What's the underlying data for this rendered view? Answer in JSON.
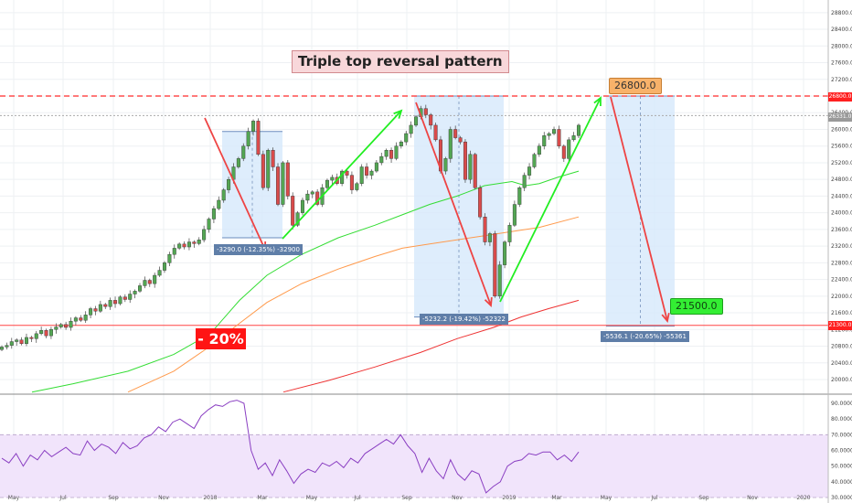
{
  "chart_data": [
    {
      "type": "candlestick",
      "title": "Triple top reversal pattern",
      "x_labels": [
        "May",
        "Jul",
        "Sep",
        "Nov",
        "2018",
        "Mar",
        "May",
        "Jul",
        "Sep",
        "Nov",
        "2019",
        "Mar",
        "May",
        "Jul",
        "Sep",
        "Nov",
        "2020"
      ],
      "y_ticks": [
        20000,
        20400,
        20800,
        21200,
        21600,
        22000,
        22400,
        22800,
        23200,
        23600,
        24000,
        24400,
        24800,
        25200,
        25600,
        26000,
        26400,
        26800,
        27200,
        27600,
        28000,
        28400,
        28800
      ],
      "y_tick_labels": [
        "20000.0",
        "20400.0",
        "20800.0",
        "21200.0",
        "21600.0",
        "22000.0",
        "22400.0",
        "22800.0",
        "23200.0",
        "23600.0",
        "24000.0",
        "24400.0",
        "24800.0",
        "25200.0",
        "25600.0",
        "26000.0",
        "26400.0",
        "26800.0",
        "27200.0",
        "27600.0",
        "28000.0",
        "28400.0",
        "28800.0"
      ],
      "ylim": [
        19700,
        29000
      ],
      "resistance_level": 26800,
      "resistance_label": "26800.0",
      "support_level": 21300,
      "support_label": "21300.0",
      "current_level": 26331,
      "current_label": "26331.0",
      "target_high_label": "26800.0",
      "target_low_label": "21500.0",
      "pct_label": "- 20%",
      "measurements": [
        {
          "label": "-3290.0 (-12.35%) -32900"
        },
        {
          "label": "-5232.2 (-19.42%) -52322"
        },
        {
          "label": "-5536.1 (-20.65%) -55361"
        }
      ],
      "closes": [
        20780,
        20820,
        20910,
        20950,
        20860,
        21010,
        20980,
        21100,
        21180,
        21050,
        21200,
        21260,
        21320,
        21250,
        21400,
        21480,
        21420,
        21550,
        21700,
        21640,
        21800,
        21750,
        21900,
        21820,
        21980,
        21920,
        22050,
        22120,
        22250,
        22380,
        22300,
        22500,
        22620,
        22800,
        23000,
        23150,
        23250,
        23180,
        23300,
        23260,
        23350,
        23600,
        23850,
        24100,
        24300,
        24550,
        24800,
        25100,
        25300,
        25600,
        25950,
        26200,
        25400,
        24600,
        25500,
        25100,
        24200,
        25200,
        24400,
        23700,
        24000,
        24300,
        24450,
        24500,
        24200,
        24600,
        24780,
        24850,
        24700,
        25000,
        24900,
        24550,
        24700,
        25100,
        24900,
        25000,
        25200,
        25350,
        25500,
        25300,
        25600,
        25700,
        25900,
        26100,
        26300,
        26500,
        26350,
        26100,
        25750,
        25000,
        25300,
        26000,
        25800,
        25700,
        24800,
        25400,
        24600,
        23900,
        23300,
        23500,
        22000,
        22750,
        23300,
        23700,
        24200,
        24600,
        24900,
        25100,
        25400,
        25600,
        25850,
        25900,
        26000,
        25600,
        25300,
        25750,
        25850,
        26100
      ],
      "moving_averages": [
        {
          "color": "#33dd33",
          "values": [
            19700,
            19900,
            20200,
            20600,
            21100,
            21900,
            22500,
            23000,
            23400,
            23700,
            23950,
            24200,
            24400,
            24650,
            24750,
            24650,
            24700,
            24850,
            25000
          ]
        },
        {
          "color": "#ff9a4c",
          "values": [
            19700,
            20200,
            20800,
            21350,
            21850,
            22300,
            22650,
            22950,
            23150,
            23250,
            23450,
            23650,
            23900
          ]
        },
        {
          "color": "#ee3333",
          "values": [
            19700,
            19980,
            20300,
            20650,
            20980,
            21250,
            21500,
            21700,
            21900
          ]
        }
      ]
    },
    {
      "type": "line",
      "indicator": "RSI",
      "y_ticks": [
        30,
        40,
        50,
        60,
        70,
        80,
        90
      ],
      "y_tick_labels": [
        "30.0000",
        "40.0000",
        "50.0000",
        "60.0000",
        "70.0000",
        "80.0000",
        "90.0000"
      ],
      "ylim": [
        27,
        95
      ],
      "band": [
        30,
        70
      ],
      "values": [
        55,
        52,
        58,
        50,
        57,
        54,
        60,
        56,
        59,
        62,
        58,
        57,
        66,
        60,
        64,
        62,
        58,
        65,
        61,
        63,
        68,
        70,
        75,
        72,
        78,
        80,
        77,
        74,
        82,
        86,
        89,
        88,
        91,
        92,
        90,
        60,
        48,
        52,
        44,
        54,
        47,
        39,
        45,
        48,
        46,
        52,
        50,
        53,
        49,
        55,
        52,
        58,
        61,
        64,
        67,
        64,
        70,
        63,
        58,
        46,
        55,
        47,
        42,
        54,
        45,
        41,
        47,
        45,
        33,
        37,
        40,
        50,
        53,
        54,
        58,
        57,
        59,
        59,
        54,
        57,
        53,
        59
      ]
    }
  ]
}
